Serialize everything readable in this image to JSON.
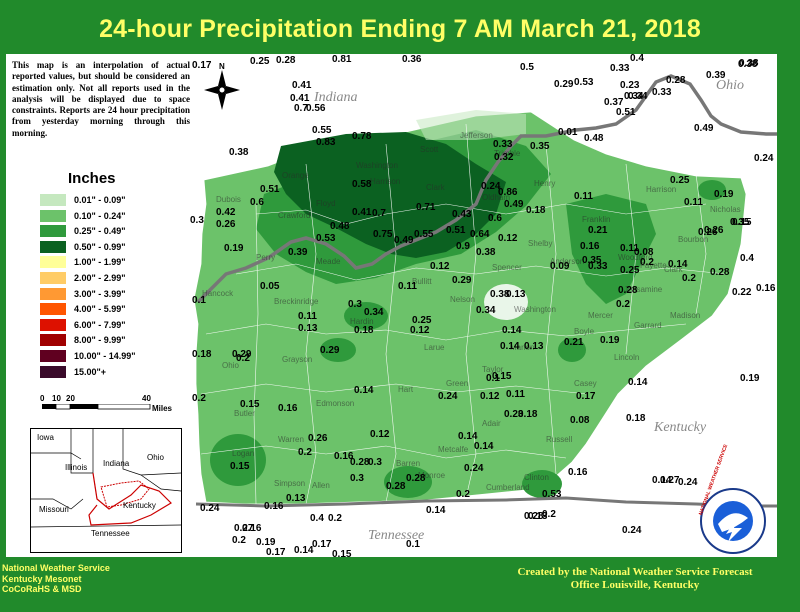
{
  "title": "24-hour Precipitation Ending 7 AM  March 21, 2018",
  "disclaimer": "This map is an interpolation of actual reported values, but should be considered an estimation only. Not all reports used in the analysis will be displayed due to space constraints. Reports are 24 hour precipitation from yesterday morning through this morning.",
  "legend": {
    "title": "Inches",
    "items": [
      {
        "label": "0.01\" - 0.09\"",
        "color": "#c5e8bf"
      },
      {
        "label": "0.10\" - 0.24\"",
        "color": "#6cc26a"
      },
      {
        "label": "0.25\" - 0.49\"",
        "color": "#2f9a3c"
      },
      {
        "label": "0.50\" - 0.99\"",
        "color": "#0b6121"
      },
      {
        "label": "1.00\" - 1.99\"",
        "color": "#ffff99"
      },
      {
        "label": "2.00\" - 2.99\"",
        "color": "#ffcc66"
      },
      {
        "label": "3.00\" - 3.99\"",
        "color": "#ff9933"
      },
      {
        "label": "4.00\" - 5.99\"",
        "color": "#ff5500"
      },
      {
        "label": "6.00\" - 7.99\"",
        "color": "#dd1100"
      },
      {
        "label": "8.00\" - 9.99\"",
        "color": "#a00000"
      },
      {
        "label": "10.00\" - 14.99\"",
        "color": "#600020"
      },
      {
        "label": "15.00\"+",
        "color": "#3a0a2a"
      }
    ]
  },
  "scale": {
    "ticks": [
      "0",
      "10",
      "20",
      "40"
    ],
    "unit": "Miles"
  },
  "states": {
    "indiana": "Indiana",
    "ohio": "Ohio",
    "kentucky": "Kentucky",
    "tennessee": "Tennessee"
  },
  "inset_labels": {
    "iowa": "Iowa",
    "illinois": "Illinois",
    "indiana": "Indiana",
    "ohio": "Ohio",
    "missouri": "Missouri",
    "kentucky": "Kentucky",
    "tennessee": "Tennessee"
  },
  "footer_left": [
    "National Weather Service",
    "Kentucky Mesonet",
    "CoCoRaHS & MSD"
  ],
  "footer_right": [
    "Created by the National Weather Service Forecast",
    "Office Louisville, Kentucky"
  ],
  "logo_text": "NATIONAL WEATHER SERVICE",
  "compass": "N",
  "colors": {
    "frame": "#218a2b",
    "title_text": "#ffff66",
    "footer_text": "#ffff66"
  },
  "values": [
    "0.17",
    "0.25",
    "0.28",
    "0.81",
    "0.36",
    "0.5",
    "0.38",
    "0.4",
    "0.33",
    "0.28",
    "0.39",
    "0.38",
    "0.41",
    "0.41",
    "0.7",
    "0.56",
    "0.29",
    "0.53",
    "0.23",
    "0.34",
    "0.37",
    "0.34",
    "0.33",
    "0.51",
    "0.38",
    "0.55",
    "0.83",
    "0.01",
    "0.48",
    "0.49",
    "0.24",
    "0.35",
    "0.33",
    "0.32",
    "0.78",
    "0.58",
    "0.24",
    "0.86",
    "0.25",
    "0.19",
    "0.51",
    "0.6",
    "0.41",
    "0.49",
    "0.18",
    "0.11",
    "0.11",
    "0.42",
    "0.26",
    "0.7",
    "0.71",
    "0.43",
    "0.6",
    "0.35",
    "0.26",
    "0.21",
    "0.15",
    "0.3",
    "0.53",
    "0.39",
    "0.48",
    "0.75",
    "0.55",
    "0.51",
    "0.64",
    "0.12",
    "0.16",
    "0.11",
    "0.08",
    "0.26",
    "0.19",
    "0.49",
    "0.9",
    "0.38",
    "0.09",
    "0.33",
    "0.25",
    "0.2",
    "0.14",
    "0.35",
    "0.28",
    "0.12",
    "0.29",
    "0.4",
    "0.2",
    "0.05",
    "0.11",
    "0.38",
    "0.13",
    "0.22",
    "0.16",
    "0.1",
    "0.3",
    "0.34",
    "0.11",
    "0.25",
    "0.34",
    "0.2",
    "0.28",
    "0.14",
    "0.12",
    "0.14",
    "0.13",
    "0.19",
    "0.21",
    "0.18",
    "0.18",
    "0.29",
    "0.29",
    "0.13",
    "0.2",
    "0.1",
    "0.15",
    "0.17",
    "0.14",
    "0.11",
    "0.23",
    "0.08",
    "0.19",
    "0.2",
    "0.15",
    "0.16",
    "0.14",
    "0.24",
    "0.12",
    "0.18",
    "0.18",
    "0.15",
    "0.12",
    "0.26",
    "0.2",
    "0.16",
    "0.28",
    "0.3",
    "0.14",
    "0.14",
    "0.28",
    "0.3",
    "0.13",
    "0.28",
    "0.24",
    "0.2",
    "0.24",
    "0.16",
    "0.27",
    "0.2",
    "0.4",
    "0.14",
    "0.13",
    "0.27",
    "0.53",
    "0.2",
    "0.16",
    "0.24",
    "0.14",
    "0.28",
    "0.2",
    "0.16",
    "0.24",
    "0.19",
    "0.17",
    "0.14",
    "0.17",
    "0.15",
    "0.1"
  ],
  "counties": [
    "Jefferson",
    "Scott",
    "Washington",
    "Orange",
    "Clark",
    "Trimble",
    "Henry",
    "Dubois",
    "Crawford",
    "Harrison",
    "Floyd",
    "Oldham",
    "Franklin",
    "Perry",
    "Hancock",
    "Meade",
    "Bullitt",
    "Shelby",
    "Spencer",
    "Anderson",
    "Woodford",
    "Nelson",
    "Washington",
    "Mercer",
    "Breckinridge",
    "Hardin",
    "Larue",
    "Marion",
    "Boyle",
    "Grayson",
    "Ohio",
    "Hart",
    "Green",
    "Taylor",
    "Casey",
    "Butler",
    "Edmonson",
    "Adair",
    "Warren",
    "Barren",
    "Metcalfe",
    "Russell",
    "Logan",
    "Simpson",
    "Allen",
    "Monroe",
    "Cumberland",
    "Clinton",
    "Lincoln",
    "Garrard",
    "Madison",
    "Fayette",
    "Clark",
    "Bourbon",
    "Harrison",
    "Nicholas",
    "Jessamine"
  ]
}
